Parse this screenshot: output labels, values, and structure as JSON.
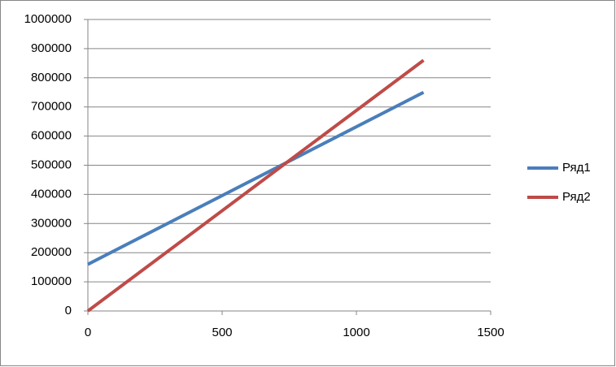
{
  "chart_data": {
    "type": "line",
    "x": [
      0,
      1250
    ],
    "series": [
      {
        "name": "Ряд1",
        "color": "#4a7ebb",
        "values": [
          160000,
          750000
        ]
      },
      {
        "name": "Ряд2",
        "color": "#be4b48",
        "values": [
          0,
          860000
        ]
      }
    ],
    "xlim": [
      0,
      1500
    ],
    "xticks": [
      0,
      500,
      1000,
      1500
    ],
    "ylim": [
      0,
      1000000
    ],
    "yticks": [
      0,
      100000,
      200000,
      300000,
      400000,
      500000,
      600000,
      700000,
      800000,
      900000,
      1000000
    ],
    "grid": true,
    "legend": "right"
  }
}
